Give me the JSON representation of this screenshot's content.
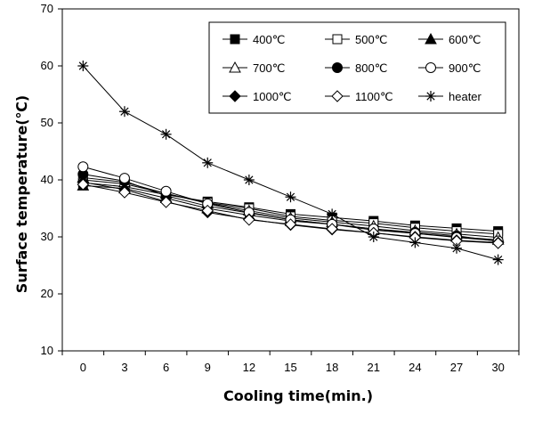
{
  "chart_data": {
    "type": "line",
    "xlabel": "Cooling time(min.)",
    "ylabel": "Surface temperature(℃)",
    "x": [
      0,
      3,
      6,
      9,
      12,
      15,
      18,
      21,
      24,
      27,
      30
    ],
    "ylim": [
      10,
      70
    ],
    "yticks": [
      10,
      20,
      30,
      40,
      50,
      60,
      70
    ],
    "grid": false,
    "legend_position": "top-right",
    "series": [
      {
        "name": "400℃",
        "marker": "filled-square",
        "values": [
          39.5,
          38.8,
          37.4,
          36.2,
          35.2,
          34.0,
          33.4,
          32.8,
          32.0,
          31.5,
          31.0
        ]
      },
      {
        "name": "500℃",
        "marker": "open-square",
        "values": [
          40.0,
          39.3,
          37.6,
          36.0,
          35.0,
          33.6,
          32.9,
          32.4,
          31.6,
          31.0,
          30.5
        ]
      },
      {
        "name": "600℃",
        "marker": "filled-triangle",
        "values": [
          39.0,
          38.5,
          36.8,
          35.0,
          33.8,
          32.8,
          32.2,
          31.2,
          30.6,
          30.0,
          29.5
        ]
      },
      {
        "name": "700℃",
        "marker": "open-triangle",
        "values": [
          40.4,
          39.6,
          37.6,
          35.9,
          34.6,
          33.3,
          32.6,
          31.9,
          31.1,
          30.5,
          29.9
        ]
      },
      {
        "name": "800℃",
        "marker": "filled-circle",
        "values": [
          41.0,
          39.8,
          37.2,
          35.4,
          34.2,
          33.0,
          32.2,
          31.4,
          30.8,
          30.2,
          29.2
        ]
      },
      {
        "name": "900℃",
        "marker": "open-circle",
        "values": [
          42.3,
          40.3,
          38.0,
          35.8,
          34.3,
          33.0,
          32.2,
          31.4,
          30.6,
          29.9,
          29.3
        ]
      },
      {
        "name": "1000℃",
        "marker": "filled-diamond",
        "values": [
          39.6,
          38.3,
          36.2,
          34.3,
          33.1,
          32.1,
          31.3,
          30.7,
          30.0,
          29.4,
          29.0
        ]
      },
      {
        "name": "1100℃",
        "marker": "open-diamond",
        "values": [
          39.2,
          37.8,
          36.1,
          34.6,
          33.0,
          32.2,
          31.4,
          30.7,
          29.9,
          29.3,
          28.9
        ]
      },
      {
        "name": "heater",
        "marker": "asterisk",
        "values": [
          60.0,
          52.0,
          48.0,
          43.0,
          40.0,
          37.0,
          34.0,
          30.0,
          29.0,
          28.0,
          26.0
        ]
      }
    ]
  }
}
